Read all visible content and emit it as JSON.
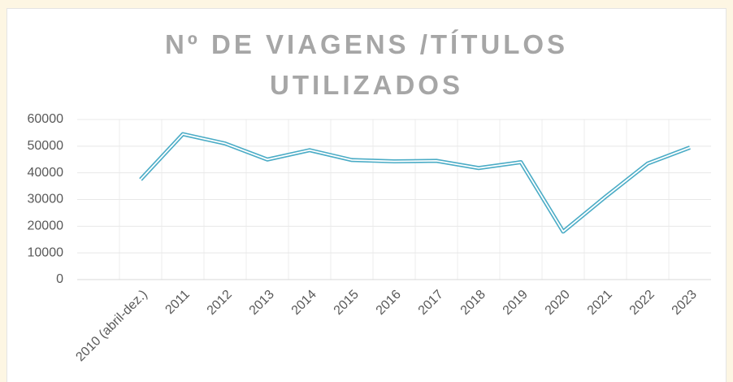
{
  "chart_data": {
    "type": "line",
    "title": "Nº DE VIAGENS /TÍTULOS UTILIZADOS",
    "categories": [
      "2010 (abril-dez.)",
      "2011",
      "2012",
      "2013",
      "2014",
      "2015",
      "2016",
      "2017",
      "2018",
      "2019",
      "2020",
      "2021",
      "2022",
      "2023"
    ],
    "series": [
      {
        "name": "Nº de viagens",
        "color": "#4bacc6",
        "values": [
          37500,
          54500,
          51000,
          45000,
          48500,
          44800,
          44300,
          44500,
          41800,
          44000,
          18000,
          31000,
          43500,
          49500
        ]
      }
    ],
    "ylim": [
      0,
      60000
    ],
    "yticks": [
      0,
      10000,
      20000,
      30000,
      40000,
      50000,
      60000
    ],
    "grid": true
  }
}
